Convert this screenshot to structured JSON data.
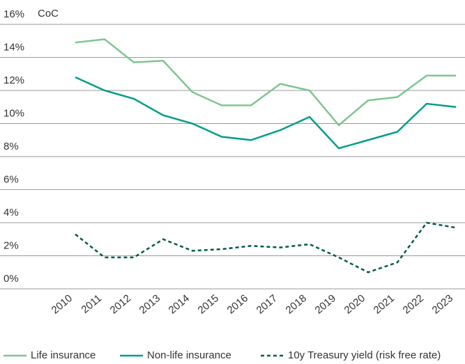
{
  "chart_data": {
    "type": "line",
    "annotation": "CoC",
    "categories": [
      "2010",
      "2011",
      "2012",
      "2013",
      "2014",
      "2015",
      "2016",
      "2017",
      "2018",
      "2019",
      "2020",
      "2021",
      "2022",
      "2023"
    ],
    "series": [
      {
        "name": "Life insurance",
        "color": "#7dc68f",
        "style": "solid",
        "values": [
          14.9,
          15.1,
          13.7,
          13.8,
          11.9,
          11.1,
          11.1,
          12.4,
          12.0,
          9.9,
          11.4,
          11.6,
          12.9,
          12.9
        ]
      },
      {
        "name": "Non-life insurance",
        "color": "#009e88",
        "style": "solid",
        "values": [
          12.8,
          12.0,
          11.5,
          10.5,
          10.0,
          9.2,
          9.0,
          9.6,
          10.4,
          8.5,
          9.0,
          9.5,
          11.2,
          11.0
        ]
      },
      {
        "name": "10y Treasury yield (risk free rate)",
        "color": "#005a4b",
        "style": "dashed",
        "values": [
          3.3,
          1.9,
          1.9,
          3.0,
          2.3,
          2.4,
          2.6,
          2.5,
          2.7,
          1.9,
          1.0,
          1.6,
          4.0,
          3.7
        ]
      }
    ],
    "ylim": [
      0,
      16
    ],
    "yticks": [
      {
        "value": 0,
        "label": "0%"
      },
      {
        "value": 2,
        "label": "2%"
      },
      {
        "value": 4,
        "label": "4%"
      },
      {
        "value": 6,
        "label": "6%"
      },
      {
        "value": 8,
        "label": "8%"
      },
      {
        "value": 10,
        "label": "10%"
      },
      {
        "value": 12,
        "label": "12%"
      },
      {
        "value": 14,
        "label": "14%"
      },
      {
        "value": 16,
        "label": "16%"
      }
    ],
    "grid": true,
    "legend": "bottom"
  }
}
